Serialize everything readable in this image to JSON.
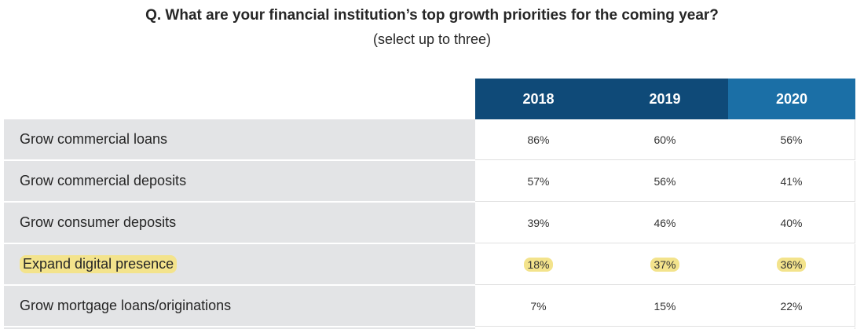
{
  "question": {
    "title": "Q. What are your financial institution’s top growth priorities for the coming year?",
    "subtitle": "(select up to three)"
  },
  "colors": {
    "header_dark": "#0f4a78",
    "header_light": "#1b6fa6",
    "label_bg": "#e3e4e6",
    "highlight": "#f3e38c"
  },
  "chart_data": {
    "type": "table",
    "title": "Q. What are your financial institution’s top growth priorities for the coming year?",
    "subtitle": "(select up to three)",
    "columns": [
      "2018",
      "2019",
      "2020"
    ],
    "rows": [
      {
        "label": "Grow commercial loans",
        "values": [
          "86%",
          "60%",
          "56%"
        ],
        "highlight": false
      },
      {
        "label": "Grow commercial deposits",
        "values": [
          "57%",
          "56%",
          "41%"
        ],
        "highlight": false
      },
      {
        "label": "Grow consumer deposits",
        "values": [
          "39%",
          "46%",
          "40%"
        ],
        "highlight": false
      },
      {
        "label": "Expand digital presence",
        "values": [
          "18%",
          "37%",
          "36%"
        ],
        "highlight": true
      },
      {
        "label": "Grow mortgage loans/originations",
        "values": [
          "7%",
          "15%",
          "22%"
        ],
        "highlight": false
      }
    ]
  }
}
